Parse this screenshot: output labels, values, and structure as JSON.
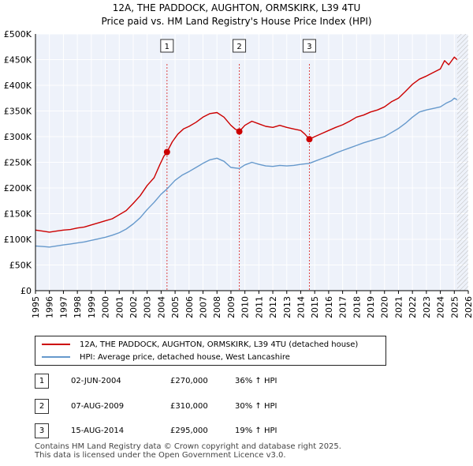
{
  "chart_data": {
    "type": "line",
    "title": "12A, THE PADDOCK, AUGHTON, ORMSKIRK, L39 4TU",
    "subtitle": "Price paid vs. HM Land Registry's House Price Index (HPI)",
    "xlim": [
      1995,
      2026
    ],
    "ylim": [
      0,
      500000
    ],
    "x_ticks": [
      "1995",
      "1996",
      "1997",
      "1998",
      "1999",
      "2000",
      "2001",
      "2002",
      "2003",
      "2004",
      "2005",
      "2006",
      "2007",
      "2008",
      "2009",
      "2010",
      "2011",
      "2012",
      "2013",
      "2014",
      "2015",
      "2016",
      "2017",
      "2018",
      "2019",
      "2020",
      "2021",
      "2022",
      "2023",
      "2024",
      "2025",
      "2026"
    ],
    "y_ticks": [
      {
        "value": 0,
        "label": "£0"
      },
      {
        "value": 50000,
        "label": "£50K"
      },
      {
        "value": 100000,
        "label": "£100K"
      },
      {
        "value": 150000,
        "label": "£150K"
      },
      {
        "value": 200000,
        "label": "£200K"
      },
      {
        "value": 250000,
        "label": "£250K"
      },
      {
        "value": 300000,
        "label": "£300K"
      },
      {
        "value": 350000,
        "label": "£350K"
      },
      {
        "value": 400000,
        "label": "£400K"
      },
      {
        "value": 450000,
        "label": "£450K"
      },
      {
        "value": 500000,
        "label": "£500K"
      }
    ],
    "grid": true,
    "future_hatch_from": 2025.2,
    "series": [
      {
        "name": "12A, THE PADDOCK, AUGHTON, ORMSKIRK, L39 4TU (detached house)",
        "color": "#cc0000",
        "points": [
          [
            1995.0,
            118000
          ],
          [
            1995.5,
            116000
          ],
          [
            1996.0,
            114000
          ],
          [
            1996.5,
            116000
          ],
          [
            1997.0,
            118000
          ],
          [
            1997.5,
            119000
          ],
          [
            1998.0,
            122000
          ],
          [
            1998.5,
            124000
          ],
          [
            1999.0,
            128000
          ],
          [
            1999.5,
            132000
          ],
          [
            2000.0,
            136000
          ],
          [
            2000.5,
            140000
          ],
          [
            2001.0,
            148000
          ],
          [
            2001.5,
            156000
          ],
          [
            2002.0,
            170000
          ],
          [
            2002.5,
            185000
          ],
          [
            2003.0,
            205000
          ],
          [
            2003.5,
            220000
          ],
          [
            2003.9,
            245000
          ],
          [
            2004.2,
            262000
          ],
          [
            2004.42,
            270000
          ],
          [
            2004.8,
            290000
          ],
          [
            2005.2,
            305000
          ],
          [
            2005.6,
            315000
          ],
          [
            2006.0,
            320000
          ],
          [
            2006.5,
            328000
          ],
          [
            2007.0,
            338000
          ],
          [
            2007.5,
            345000
          ],
          [
            2008.0,
            347000
          ],
          [
            2008.5,
            338000
          ],
          [
            2009.0,
            322000
          ],
          [
            2009.3,
            315000
          ],
          [
            2009.6,
            310000
          ],
          [
            2010.0,
            322000
          ],
          [
            2010.5,
            330000
          ],
          [
            2011.0,
            325000
          ],
          [
            2011.5,
            320000
          ],
          [
            2012.0,
            318000
          ],
          [
            2012.5,
            322000
          ],
          [
            2013.0,
            318000
          ],
          [
            2013.5,
            315000
          ],
          [
            2014.0,
            312000
          ],
          [
            2014.3,
            305000
          ],
          [
            2014.62,
            295000
          ],
          [
            2015.0,
            300000
          ],
          [
            2015.5,
            306000
          ],
          [
            2016.0,
            312000
          ],
          [
            2016.5,
            318000
          ],
          [
            2017.0,
            323000
          ],
          [
            2017.5,
            330000
          ],
          [
            2018.0,
            338000
          ],
          [
            2018.5,
            342000
          ],
          [
            2019.0,
            348000
          ],
          [
            2019.5,
            352000
          ],
          [
            2020.0,
            358000
          ],
          [
            2020.5,
            368000
          ],
          [
            2021.0,
            375000
          ],
          [
            2021.5,
            388000
          ],
          [
            2022.0,
            402000
          ],
          [
            2022.5,
            412000
          ],
          [
            2023.0,
            418000
          ],
          [
            2023.5,
            425000
          ],
          [
            2024.0,
            432000
          ],
          [
            2024.3,
            448000
          ],
          [
            2024.6,
            440000
          ],
          [
            2025.0,
            455000
          ],
          [
            2025.2,
            450000
          ]
        ]
      },
      {
        "name": "HPI: Average price, detached house, West Lancashire",
        "color": "#6699cc",
        "points": [
          [
            1995.0,
            87000
          ],
          [
            1995.5,
            86000
          ],
          [
            1996.0,
            85000
          ],
          [
            1996.5,
            87000
          ],
          [
            1997.0,
            89000
          ],
          [
            1997.5,
            91000
          ],
          [
            1998.0,
            93000
          ],
          [
            1998.5,
            95000
          ],
          [
            1999.0,
            98000
          ],
          [
            1999.5,
            101000
          ],
          [
            2000.0,
            104000
          ],
          [
            2000.5,
            108000
          ],
          [
            2001.0,
            113000
          ],
          [
            2001.5,
            120000
          ],
          [
            2002.0,
            130000
          ],
          [
            2002.5,
            142000
          ],
          [
            2003.0,
            158000
          ],
          [
            2003.5,
            172000
          ],
          [
            2004.0,
            188000
          ],
          [
            2004.42,
            198000
          ],
          [
            2005.0,
            215000
          ],
          [
            2005.5,
            225000
          ],
          [
            2006.0,
            232000
          ],
          [
            2006.5,
            240000
          ],
          [
            2007.0,
            248000
          ],
          [
            2007.5,
            255000
          ],
          [
            2008.0,
            258000
          ],
          [
            2008.5,
            252000
          ],
          [
            2009.0,
            240000
          ],
          [
            2009.6,
            238000
          ],
          [
            2010.0,
            245000
          ],
          [
            2010.5,
            250000
          ],
          [
            2011.0,
            246000
          ],
          [
            2011.5,
            243000
          ],
          [
            2012.0,
            242000
          ],
          [
            2012.5,
            244000
          ],
          [
            2013.0,
            243000
          ],
          [
            2013.5,
            244000
          ],
          [
            2014.0,
            246000
          ],
          [
            2014.62,
            248000
          ],
          [
            2015.0,
            252000
          ],
          [
            2015.5,
            257000
          ],
          [
            2016.0,
            262000
          ],
          [
            2016.5,
            268000
          ],
          [
            2017.0,
            273000
          ],
          [
            2017.5,
            278000
          ],
          [
            2018.0,
            283000
          ],
          [
            2018.5,
            288000
          ],
          [
            2019.0,
            292000
          ],
          [
            2019.5,
            296000
          ],
          [
            2020.0,
            300000
          ],
          [
            2020.5,
            308000
          ],
          [
            2021.0,
            316000
          ],
          [
            2021.5,
            326000
          ],
          [
            2022.0,
            338000
          ],
          [
            2022.5,
            348000
          ],
          [
            2023.0,
            352000
          ],
          [
            2023.5,
            355000
          ],
          [
            2024.0,
            358000
          ],
          [
            2024.4,
            365000
          ],
          [
            2024.8,
            370000
          ],
          [
            2025.0,
            375000
          ],
          [
            2025.2,
            372000
          ]
        ]
      }
    ],
    "sales": [
      {
        "label": "1",
        "date": "02-JUN-2004",
        "x": 2004.42,
        "price": 270000,
        "price_label": "£270,000",
        "hpi_label": "36% ↑ HPI"
      },
      {
        "label": "2",
        "date": "07-AUG-2009",
        "x": 2009.6,
        "price": 310000,
        "price_label": "£310,000",
        "hpi_label": "30% ↑ HPI"
      },
      {
        "label": "3",
        "date": "15-AUG-2014",
        "x": 2014.62,
        "price": 295000,
        "price_label": "£295,000",
        "hpi_label": "19% ↑ HPI"
      }
    ]
  },
  "legend": {
    "property_label": "12A, THE PADDOCK, AUGHTON, ORMSKIRK, L39 4TU (detached house)",
    "hpi_label": "HPI: Average price, detached house, West Lancashire",
    "property_color": "#cc0000",
    "hpi_color": "#6699cc"
  },
  "footer": {
    "line1": "Contains HM Land Registry data © Crown copyright and database right 2025.",
    "line2": "This data is licensed under the Open Government Licence v3.0."
  }
}
